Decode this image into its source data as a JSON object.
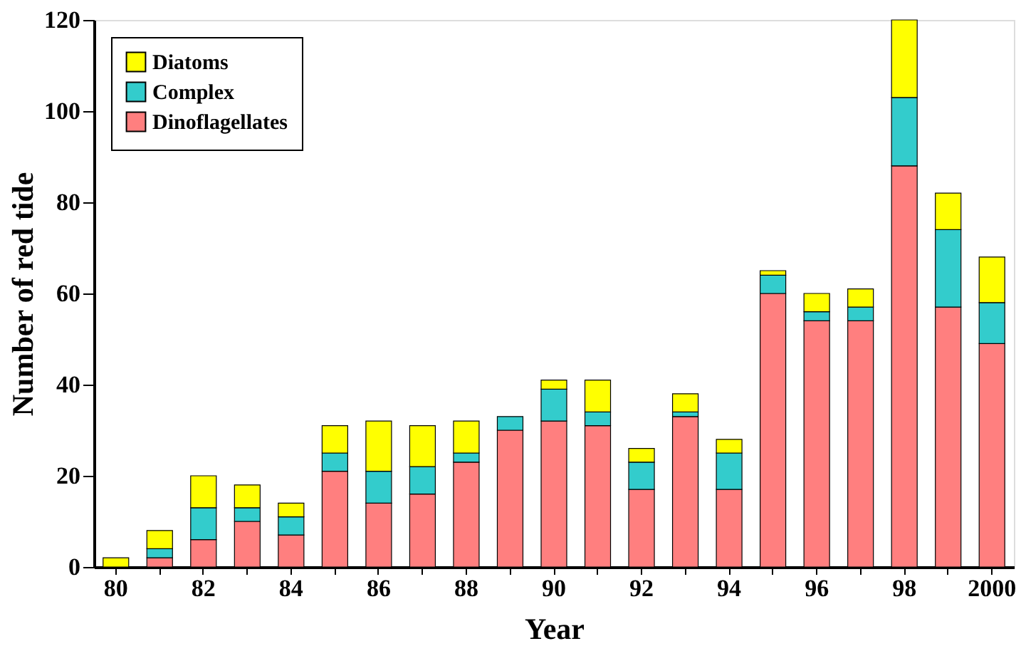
{
  "chart_data": {
    "type": "bar",
    "stacked": true,
    "xlabel": "Year",
    "ylabel": "Number of red tide",
    "categories": [
      "80",
      null,
      "82",
      null,
      "84",
      null,
      "86",
      null,
      "88",
      null,
      "90",
      null,
      "92",
      null,
      "94",
      null,
      "96",
      null,
      "98",
      null,
      "2000"
    ],
    "series": [
      {
        "name": "Dinoflagellates",
        "color": "#ff7f7f",
        "values": [
          0,
          2,
          6,
          10,
          7,
          21,
          14,
          16,
          23,
          30,
          32,
          31,
          17,
          33,
          17,
          60,
          54,
          54,
          88,
          57,
          49
        ]
      },
      {
        "name": "Complex",
        "color": "#33cccc",
        "values": [
          0,
          2,
          7,
          3,
          4,
          4,
          7,
          6,
          2,
          3,
          7,
          3,
          6,
          1,
          8,
          4,
          2,
          3,
          15,
          17,
          9
        ]
      },
      {
        "name": "Diatoms",
        "color": "#ffff00",
        "values": [
          2,
          4,
          7,
          5,
          3,
          6,
          11,
          9,
          7,
          0,
          2,
          7,
          3,
          4,
          3,
          1,
          4,
          4,
          17,
          8,
          10
        ]
      }
    ],
    "ylim": [
      0,
      120
    ],
    "yticks": [
      0,
      20,
      40,
      60,
      80,
      100,
      120
    ],
    "grid": false,
    "legend": "top left"
  }
}
